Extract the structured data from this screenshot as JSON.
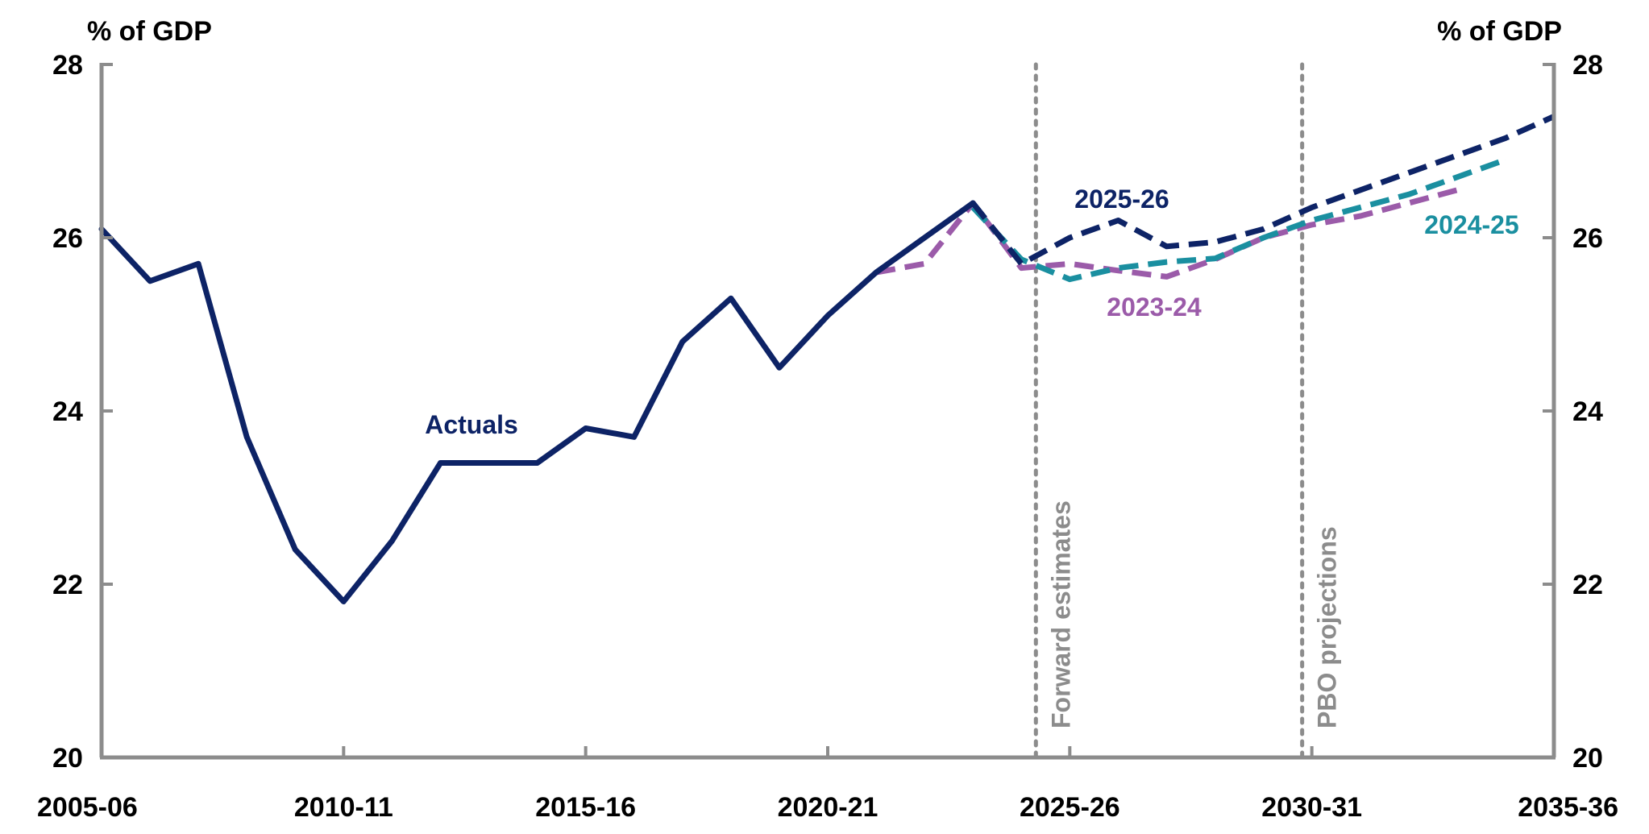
{
  "chart_data": {
    "type": "line",
    "x": [
      "2005-06",
      "2006-07",
      "2007-08",
      "2008-09",
      "2009-10",
      "2010-11",
      "2011-12",
      "2012-13",
      "2013-14",
      "2014-15",
      "2015-16",
      "2016-17",
      "2017-18",
      "2018-19",
      "2019-20",
      "2020-21",
      "2021-22",
      "2022-23",
      "2023-24",
      "2024-25",
      "2025-26",
      "2026-27",
      "2027-28",
      "2028-29",
      "2029-30",
      "2030-31",
      "2031-32",
      "2032-33",
      "2033-34",
      "2034-35",
      "2035-36"
    ],
    "x_tick_labels": [
      "2005-06",
      "2010-11",
      "2015-16",
      "2020-21",
      "2025-26",
      "2030-31",
      "2035-36"
    ],
    "y_tick_labels": [
      "20",
      "22",
      "24",
      "26",
      "28"
    ],
    "ylim": [
      20,
      28
    ],
    "left_unit_label": "% of GDP",
    "right_unit_label": "% of GDP",
    "grid": false,
    "series": [
      {
        "name": "Actuals",
        "color": "#0d2366",
        "dash": "solid",
        "values": [
          26.1,
          25.5,
          25.7,
          23.7,
          22.4,
          21.8,
          22.5,
          23.4,
          23.4,
          23.4,
          23.8,
          23.7,
          24.8,
          25.3,
          24.5,
          25.1,
          25.6,
          26.0,
          26.4,
          null,
          null,
          null,
          null,
          null,
          null,
          null,
          null,
          null,
          null,
          null,
          null
        ]
      },
      {
        "name": "2023-24",
        "color": "#9b5ba9",
        "dash": "dashed",
        "values": [
          null,
          null,
          null,
          null,
          null,
          null,
          null,
          null,
          null,
          null,
          null,
          null,
          null,
          null,
          null,
          null,
          25.6,
          25.7,
          26.4,
          25.65,
          25.7,
          25.62,
          25.55,
          25.75,
          26.0,
          26.15,
          26.25,
          26.4,
          26.55,
          null,
          null
        ]
      },
      {
        "name": "2024-25",
        "color": "#1a8fa0",
        "dash": "dashed",
        "values": [
          null,
          null,
          null,
          null,
          null,
          null,
          null,
          null,
          null,
          null,
          null,
          null,
          null,
          null,
          null,
          null,
          null,
          null,
          26.35,
          25.75,
          25.52,
          25.65,
          25.72,
          25.76,
          26.0,
          26.2,
          26.35,
          26.5,
          26.7,
          26.9,
          null
        ]
      },
      {
        "name": "2025-26",
        "color": "#0d2366",
        "dash": "dashed",
        "values": [
          null,
          null,
          null,
          null,
          null,
          null,
          null,
          null,
          null,
          null,
          null,
          null,
          null,
          null,
          null,
          null,
          null,
          null,
          26.4,
          25.7,
          26.0,
          26.2,
          25.9,
          25.95,
          26.1,
          26.35,
          26.55,
          26.75,
          26.95,
          27.15,
          27.4
        ]
      }
    ],
    "vertical_markers": [
      {
        "label": "Forward estimates",
        "x_index": 19.3
      },
      {
        "label": "PBO projections",
        "x_index": 24.8
      }
    ]
  }
}
